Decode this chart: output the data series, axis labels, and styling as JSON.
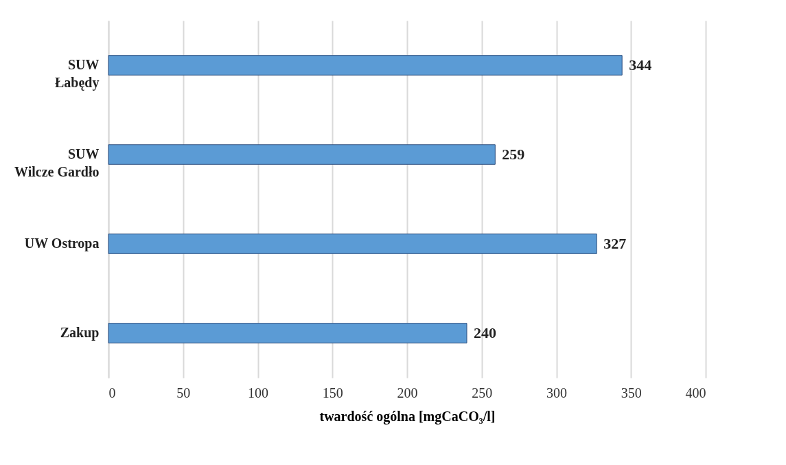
{
  "chart_data": {
    "type": "bar",
    "orientation": "horizontal",
    "xlabel": "twardość ogólna [mgCaCO₃/l]",
    "categories": [
      "SUW\nŁabędy",
      "SUW\nWilcze Gardło",
      "UW Ostropa",
      "Zakup"
    ],
    "values": [
      344,
      259,
      327,
      240
    ],
    "color": "#5b9bd5",
    "xlim": [
      0,
      400
    ],
    "xticks": [
      0,
      50,
      100,
      150,
      200,
      250,
      300,
      350,
      400
    ],
    "grid": "x",
    "data_labels": true
  }
}
